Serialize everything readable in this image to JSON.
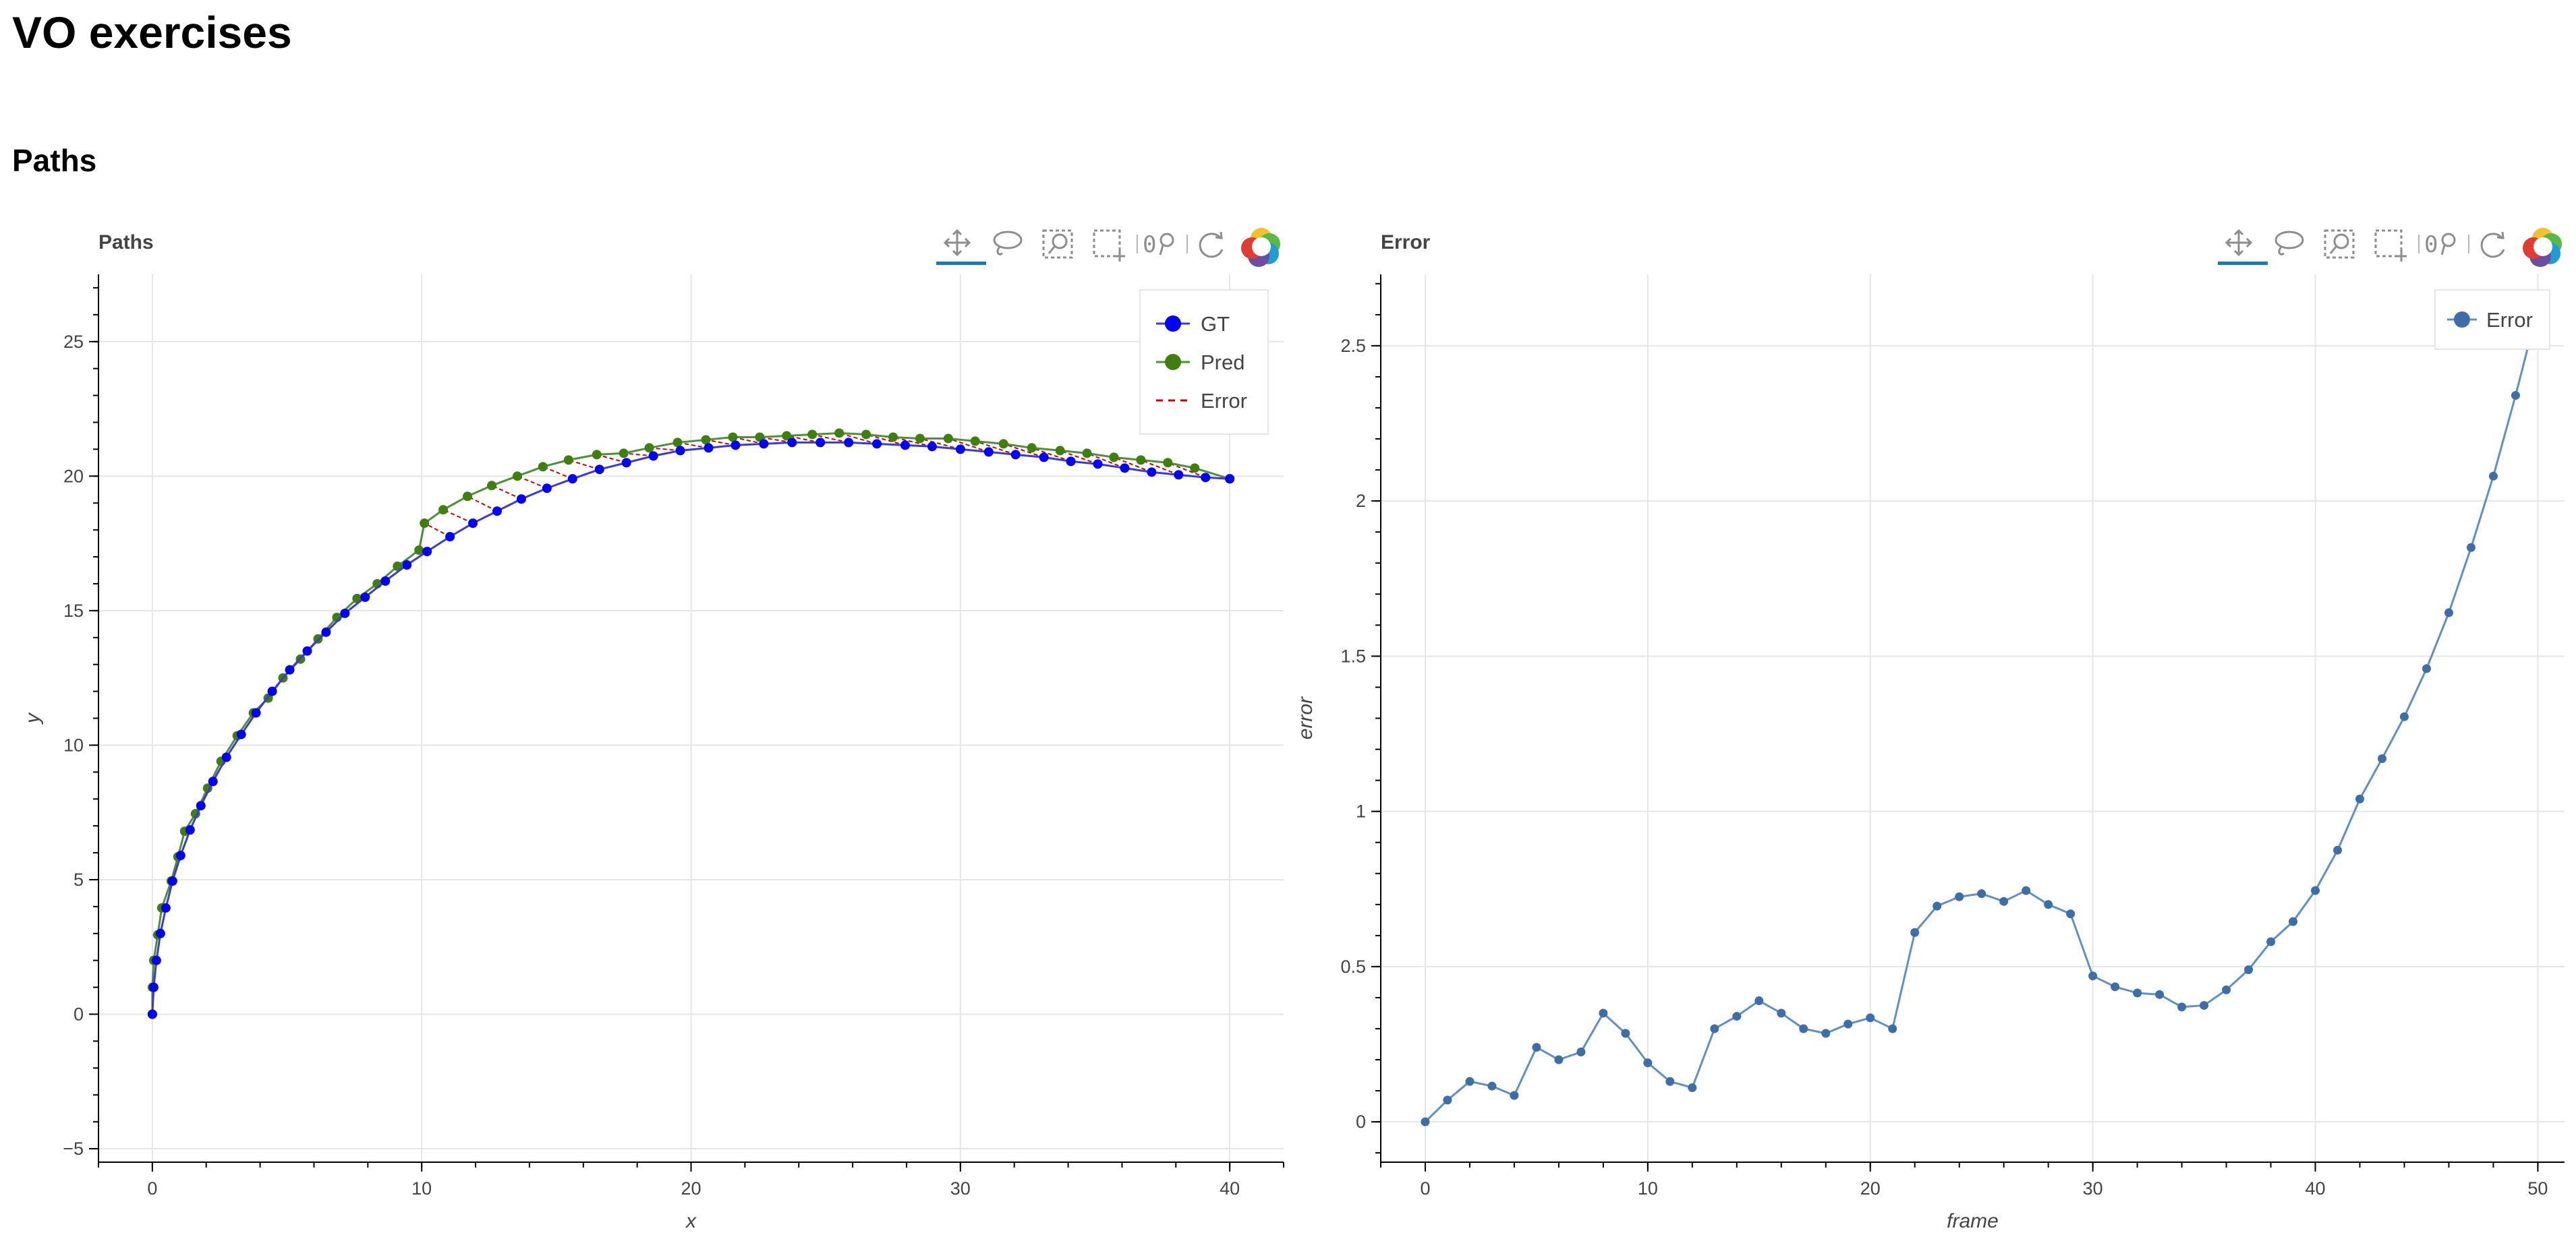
{
  "page": {
    "title": "VO exercises",
    "section_title": "Paths"
  },
  "toolbar": {
    "tools": [
      "pan-icon",
      "lasso-select-icon",
      "box-zoom-icon",
      "box-select-icon",
      "wheel-zoom-icon",
      "reset-icon",
      "bokeh-logo-icon"
    ],
    "active_color": "#1f77b4",
    "icon_color": "#8d8d8d"
  },
  "colors": {
    "gt": "#0000ff",
    "gt_line": "#3a3ad6",
    "pred": "#3f7f0d",
    "pred_line": "#4f8f3a",
    "error_dash": "#cc0000",
    "error_series": "#5e8fc6",
    "error_marker": "#3d6ea8"
  },
  "chart_data": [
    {
      "type": "line",
      "title": "Paths",
      "xlabel": "x",
      "ylabel": "y",
      "xlim": [
        -2,
        42
      ],
      "ylim": [
        -5.5,
        27.5
      ],
      "xticks": [
        0,
        10,
        20,
        30,
        40
      ],
      "yticks": [
        -5,
        0,
        5,
        10,
        15,
        20,
        25
      ],
      "grid": true,
      "legend_position": "top-right",
      "series": [
        {
          "name": "GT",
          "marker": "circle",
          "x": [
            0,
            0.05,
            0.15,
            0.3,
            0.5,
            0.75,
            1.05,
            1.4,
            1.8,
            2.25,
            2.75,
            3.3,
            3.85,
            4.45,
            5.1,
            5.75,
            6.45,
            7.15,
            7.9,
            8.65,
            9.45,
            10.2,
            11.05,
            11.9,
            12.8,
            13.7,
            14.65,
            15.6,
            16.6,
            17.6,
            18.6,
            19.6,
            20.65,
            21.65,
            22.7,
            23.75,
            24.8,
            25.85,
            26.9,
            27.95,
            28.95,
            30.0,
            31.05,
            32.05,
            33.1,
            34.1,
            35.1,
            36.1,
            37.1,
            38.1,
            39.1,
            40.0
          ],
          "y": [
            0,
            1,
            2,
            3,
            3.95,
            4.95,
            5.9,
            6.85,
            7.75,
            8.65,
            9.55,
            10.4,
            11.2,
            12.0,
            12.8,
            13.5,
            14.2,
            14.9,
            15.5,
            16.1,
            16.7,
            17.2,
            17.75,
            18.25,
            18.7,
            19.15,
            19.55,
            19.9,
            20.25,
            20.5,
            20.75,
            20.95,
            21.05,
            21.15,
            21.2,
            21.25,
            21.25,
            21.25,
            21.2,
            21.15,
            21.1,
            21.0,
            20.9,
            20.8,
            20.7,
            20.55,
            20.45,
            20.3,
            20.15,
            20.05,
            19.95,
            19.9
          ]
        },
        {
          "name": "Pred",
          "marker": "circle",
          "x": [
            0,
            0.0,
            0.05,
            0.2,
            0.35,
            0.7,
            0.95,
            1.2,
            1.6,
            2.05,
            2.55,
            3.15,
            3.75,
            4.3,
            4.85,
            5.5,
            6.15,
            6.85,
            7.6,
            8.35,
            9.1,
            9.9,
            10.1,
            10.8,
            11.7,
            12.6,
            13.55,
            14.5,
            15.45,
            16.5,
            17.5,
            18.45,
            19.5,
            20.55,
            21.55,
            22.55,
            23.55,
            24.5,
            25.5,
            26.5,
            27.5,
            28.5,
            29.55,
            30.55,
            31.6,
            32.65,
            33.7,
            34.7,
            35.7,
            36.7,
            37.7,
            38.7,
            40.0
          ],
          "y": [
            0,
            1,
            2,
            2.95,
            3.95,
            4.95,
            5.85,
            6.8,
            7.45,
            8.4,
            9.4,
            10.35,
            11.2,
            11.75,
            12.5,
            13.2,
            13.95,
            14.75,
            15.45,
            16.0,
            16.65,
            17.25,
            18.25,
            18.75,
            19.25,
            19.65,
            20.0,
            20.35,
            20.6,
            20.8,
            20.85,
            21.05,
            21.25,
            21.35,
            21.45,
            21.45,
            21.5,
            21.55,
            21.6,
            21.55,
            21.45,
            21.4,
            21.4,
            21.3,
            21.2,
            21.05,
            20.95,
            20.85,
            20.7,
            20.6,
            20.5,
            20.3,
            19.9
          ]
        },
        {
          "name": "Error",
          "dash": true
        }
      ]
    },
    {
      "type": "line",
      "title": "Error",
      "xlabel": "frame",
      "ylabel": "error",
      "xlim": [
        -2,
        51.2
      ],
      "ylim": [
        -0.13,
        2.73
      ],
      "xticks": [
        0,
        10,
        20,
        30,
        40,
        50
      ],
      "yticks": [
        0,
        0.5,
        1,
        1.5,
        2,
        2.5
      ],
      "ytick_labels": [
        "0",
        "0.5",
        "1",
        "1.5",
        "2",
        "2.5"
      ],
      "grid": true,
      "legend_position": "top-right",
      "series": [
        {
          "name": "Error",
          "marker": "circle",
          "x": [
            0,
            1,
            2,
            3,
            4,
            5,
            6,
            7,
            8,
            9,
            10,
            11,
            12,
            13,
            14,
            15,
            16,
            17,
            18,
            19,
            20,
            21,
            22,
            23,
            24,
            25,
            26,
            27,
            28,
            29,
            30,
            31,
            32,
            33,
            34,
            35,
            36,
            37,
            38,
            39,
            40,
            41,
            42,
            43,
            44,
            45,
            46,
            47,
            48,
            49,
            50
          ],
          "y": [
            0,
            0.07,
            0.13,
            0.115,
            0.085,
            0.24,
            0.2,
            0.225,
            0.35,
            0.285,
            0.19,
            0.13,
            0.11,
            0.3,
            0.34,
            0.39,
            0.35,
            0.3,
            0.285,
            0.315,
            0.335,
            0.3,
            0.61,
            0.695,
            0.725,
            0.735,
            0.71,
            0.745,
            0.7,
            0.67,
            0.47,
            0.435,
            0.415,
            0.41,
            0.37,
            0.375,
            0.425,
            0.49,
            0.58,
            0.645,
            0.745,
            0.875,
            1.04,
            1.17,
            1.305,
            1.46,
            1.64,
            1.85,
            2.08,
            2.34,
            2.62
          ]
        }
      ]
    }
  ]
}
